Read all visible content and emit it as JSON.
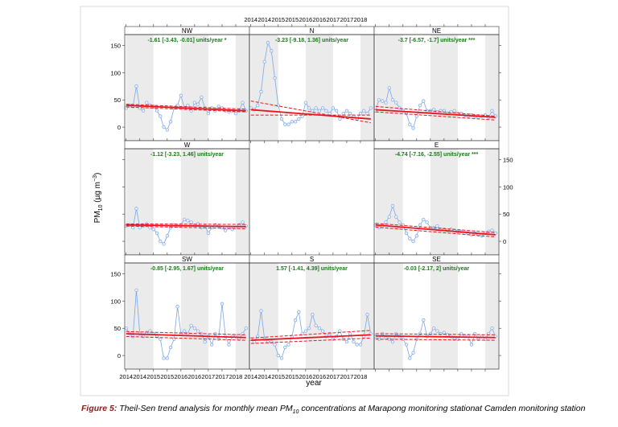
{
  "chart_data": {
    "type": "line",
    "xlabel": "year",
    "ylabel": [
      "PM",
      "10",
      " (µg m",
      "−3",
      ")"
    ],
    "xlim": [
      2013.95,
      2018.5
    ],
    "xticks": [
      {
        "value": 2014.0,
        "label": "2014"
      },
      {
        "value": 2014.5,
        "label": "2014"
      },
      {
        "value": 2015.0,
        "label": "2015"
      },
      {
        "value": 2015.5,
        "label": "2015"
      },
      {
        "value": 2016.0,
        "label": "2016"
      },
      {
        "value": 2016.5,
        "label": "2016"
      },
      {
        "value": 2017.0,
        "label": "2017"
      },
      {
        "value": 2017.5,
        "label": "2017"
      },
      {
        "value": 2018.0,
        "label": "2018"
      }
    ],
    "ylim": [
      -25,
      170
    ],
    "yticks": [
      0,
      50,
      100,
      150
    ],
    "point_color": "#7aa6e6",
    "trend_color": "#e8141c",
    "annotation_color": "#1a7a1a",
    "x": [
      2014.0,
      2014.125,
      2014.25,
      2014.375,
      2014.5,
      2014.625,
      2014.75,
      2014.875,
      2015.0,
      2015.125,
      2015.25,
      2015.375,
      2015.5,
      2015.625,
      2015.75,
      2015.875,
      2016.0,
      2016.125,
      2016.25,
      2016.375,
      2016.5,
      2016.625,
      2016.75,
      2016.875,
      2017.0,
      2017.125,
      2017.25,
      2017.375,
      2017.5,
      2017.625,
      2017.75,
      2017.875,
      2018.0,
      2018.125,
      2018.25,
      2018.375
    ],
    "trend_x": [
      2014.0,
      2018.375
    ],
    "panels": [
      {
        "name": "NW",
        "annotation": "-1.61 [-3.43, -0.01] units/year *",
        "values": [
          35,
          40,
          38,
          75,
          35,
          30,
          45,
          40,
          38,
          30,
          20,
          0,
          -5,
          10,
          35,
          40,
          58,
          35,
          40,
          30,
          45,
          42,
          55,
          35,
          25,
          35,
          30,
          38,
          35,
          30,
          28,
          30,
          25,
          30,
          45,
          30
        ],
        "trend": [
          40,
          30
        ],
        "ci": [
          [
            42,
            33
          ],
          [
            37,
            28
          ]
        ]
      },
      {
        "name": "N",
        "annotation": "-3.23 [-9.18, 1.36] units/year",
        "values": [
          35,
          32,
          40,
          65,
          120,
          155,
          140,
          90,
          40,
          15,
          5,
          5,
          10,
          10,
          15,
          20,
          45,
          35,
          30,
          35,
          30,
          35,
          30,
          25,
          35,
          30,
          15,
          25,
          30,
          25,
          20,
          15,
          25,
          30,
          25,
          35
        ],
        "trend": [
          32,
          15
        ],
        "ci": [
          [
            48,
            8
          ],
          [
            22,
            22
          ]
        ]
      },
      {
        "name": "NE",
        "annotation": "-3.7 [-6.57, -1.7] units/year ***",
        "values": [
          30,
          50,
          48,
          45,
          72,
          50,
          45,
          35,
          30,
          25,
          5,
          -2,
          20,
          40,
          48,
          30,
          30,
          32,
          28,
          30,
          30,
          25,
          28,
          30,
          25,
          25,
          22,
          20,
          22,
          20,
          18,
          20,
          22,
          18,
          30,
          20
        ],
        "trend": [
          32,
          18
        ],
        "ci": [
          [
            38,
            20
          ],
          [
            28,
            13
          ]
        ]
      },
      {
        "name": "W",
        "annotation": "-1.12 [-3.23, 1.46] units/year",
        "values": [
          28,
          30,
          25,
          60,
          25,
          28,
          32,
          25,
          22,
          15,
          0,
          -5,
          10,
          25,
          30,
          28,
          30,
          40,
          38,
          35,
          28,
          32,
          25,
          28,
          15,
          25,
          30,
          28,
          25,
          20,
          25,
          22,
          25,
          30,
          35,
          28
        ],
        "trend": [
          30,
          27
        ],
        "ci": [
          [
            32,
            31
          ],
          [
            28,
            23
          ]
        ]
      },
      {
        "name": "E",
        "annotation": "-4.74 [-7.16, -2.55] units/year ***",
        "values": [
          30,
          25,
          28,
          35,
          45,
          65,
          45,
          35,
          30,
          15,
          5,
          0,
          10,
          30,
          40,
          35,
          25,
          25,
          28,
          22,
          22,
          20,
          22,
          20,
          18,
          18,
          15,
          15,
          12,
          15,
          12,
          10,
          15,
          18,
          20,
          15
        ],
        "trend": [
          30,
          12
        ],
        "ci": [
          [
            33,
            16
          ],
          [
            26,
            8
          ]
        ]
      },
      {
        "name": "SW",
        "annotation": "-0.85 [-2.95, 1.67] units/year",
        "values": [
          50,
          40,
          35,
          120,
          40,
          35,
          42,
          45,
          40,
          35,
          30,
          -5,
          -5,
          15,
          30,
          90,
          40,
          45,
          40,
          55,
          50,
          45,
          40,
          25,
          35,
          20,
          40,
          30,
          95,
          35,
          20,
          35,
          35,
          30,
          40,
          50
        ],
        "trend": [
          40,
          33
        ],
        "ci": [
          [
            44,
            38
          ],
          [
            35,
            28
          ]
        ]
      },
      {
        "name": "S",
        "annotation": "1.57 [-1.41, 4.39] units/year",
        "values": [
          30,
          25,
          35,
          82,
          30,
          25,
          25,
          20,
          0,
          -5,
          15,
          20,
          35,
          65,
          80,
          40,
          45,
          50,
          75,
          55,
          50,
          45,
          35,
          40,
          30,
          35,
          45,
          30,
          25,
          40,
          25,
          20,
          20,
          35,
          75,
          40
        ],
        "trend": [
          28,
          38
        ],
        "ci": [
          [
            32,
            46
          ],
          [
            22,
            32
          ]
        ]
      },
      {
        "name": "SE",
        "annotation": "-0.03 [-2.17, 2] units/year",
        "values": [
          35,
          30,
          40,
          32,
          30,
          25,
          40,
          35,
          30,
          20,
          -5,
          5,
          30,
          40,
          65,
          35,
          40,
          50,
          45,
          40,
          42,
          38,
          35,
          30,
          30,
          40,
          35,
          35,
          20,
          40,
          30,
          35,
          30,
          40,
          50,
          35
        ],
        "trend": [
          36,
          33
        ],
        "ci": [
          [
            40,
            38
          ],
          [
            30,
            28
          ]
        ]
      }
    ]
  },
  "caption": {
    "label": "Figure 5:",
    "text": [
      "Theil-Sen trend analysis for monthly mean PM",
      "10",
      " concentrations at Marapong monitoring stationat Camden monitoring station"
    ]
  }
}
